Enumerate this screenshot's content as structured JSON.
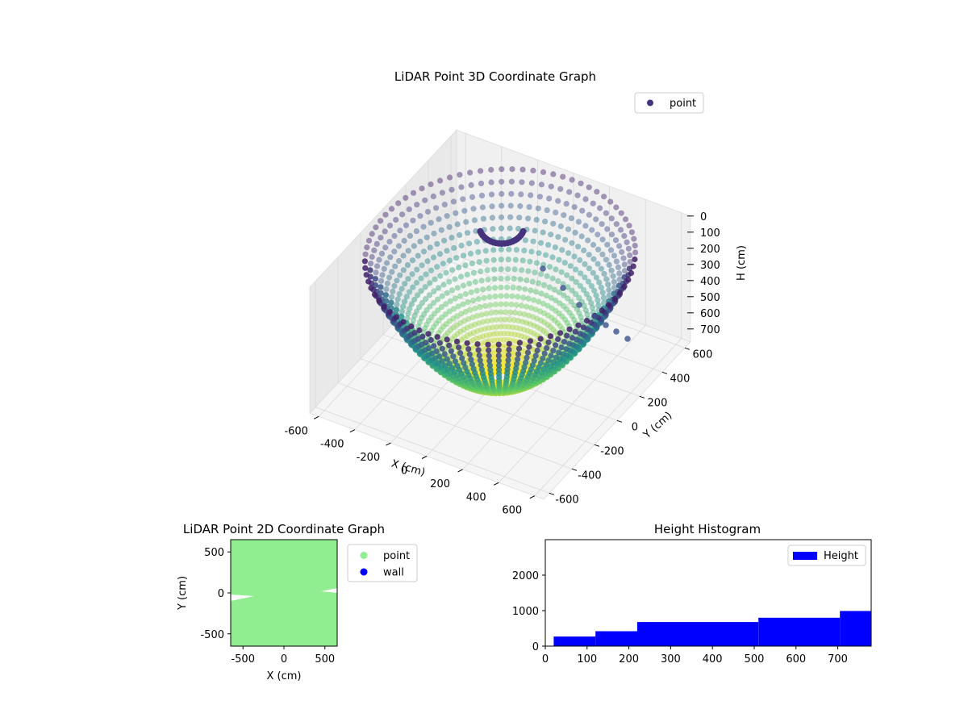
{
  "chart_data": [
    {
      "type": "scatter",
      "projection": "3d",
      "title": "LiDAR Point 3D Coordinate Graph",
      "xlabel": "X (cm)",
      "ylabel": "Y (cm)",
      "zlabel": "H (cm)",
      "xlim": [
        -650,
        650
      ],
      "ylim": [
        -650,
        650
      ],
      "zlim": [
        0,
        780
      ],
      "zinverted": true,
      "xticks": [
        "-600",
        "-400",
        "-200",
        "0",
        "200",
        "400",
        "600"
      ],
      "yticks": [
        "-600",
        "-400",
        "-200",
        "0",
        "200",
        "400",
        "600"
      ],
      "zticks": [
        "0",
        "100",
        "200",
        "300",
        "400",
        "500",
        "600",
        "700"
      ],
      "colormap": "viridis",
      "legend": {
        "placement": "top-right",
        "entries": [
          {
            "label": "point",
            "color": "#46337e"
          }
        ]
      },
      "series": [
        {
          "name": "point",
          "shape": "bowl",
          "description_values": {
            "rim_radius": 650,
            "rim_height": 0,
            "bottom_height": 780
          }
        }
      ]
    },
    {
      "type": "scatter",
      "title": "LiDAR Point 2D Coordinate Graph",
      "xlabel": "X (cm)",
      "ylabel": "Y (cm)",
      "xlim": [
        -650,
        650
      ],
      "ylim": [
        -650,
        650
      ],
      "xticks": [
        "-500",
        "0",
        "500"
      ],
      "yticks": [
        "-500",
        "0",
        "500"
      ],
      "legend": {
        "placement": "outside-right",
        "entries": [
          {
            "label": "point",
            "color": "#90ee90"
          },
          {
            "label": "wall",
            "color": "#0000ff"
          }
        ]
      }
    },
    {
      "type": "bar",
      "title": "Height Histogram",
      "xlim": [
        0,
        780
      ],
      "ylim": [
        0,
        3000
      ],
      "xticks": [
        "0",
        "100",
        "200",
        "300",
        "400",
        "500",
        "600",
        "700"
      ],
      "yticks": [
        "0",
        "1000",
        "2000"
      ],
      "legend": {
        "placement": "top-right",
        "entries": [
          {
            "label": "Height",
            "color": "#0000ff"
          }
        ]
      },
      "bins": [
        {
          "start": 20,
          "end": 120,
          "value": 270
        },
        {
          "start": 120,
          "end": 220,
          "value": 420
        },
        {
          "start": 220,
          "end": 510,
          "value": 680
        },
        {
          "start": 510,
          "end": 705,
          "value": 800
        },
        {
          "start": 705,
          "end": 780,
          "value": 990
        }
      ],
      "color": "#0000ff"
    }
  ]
}
